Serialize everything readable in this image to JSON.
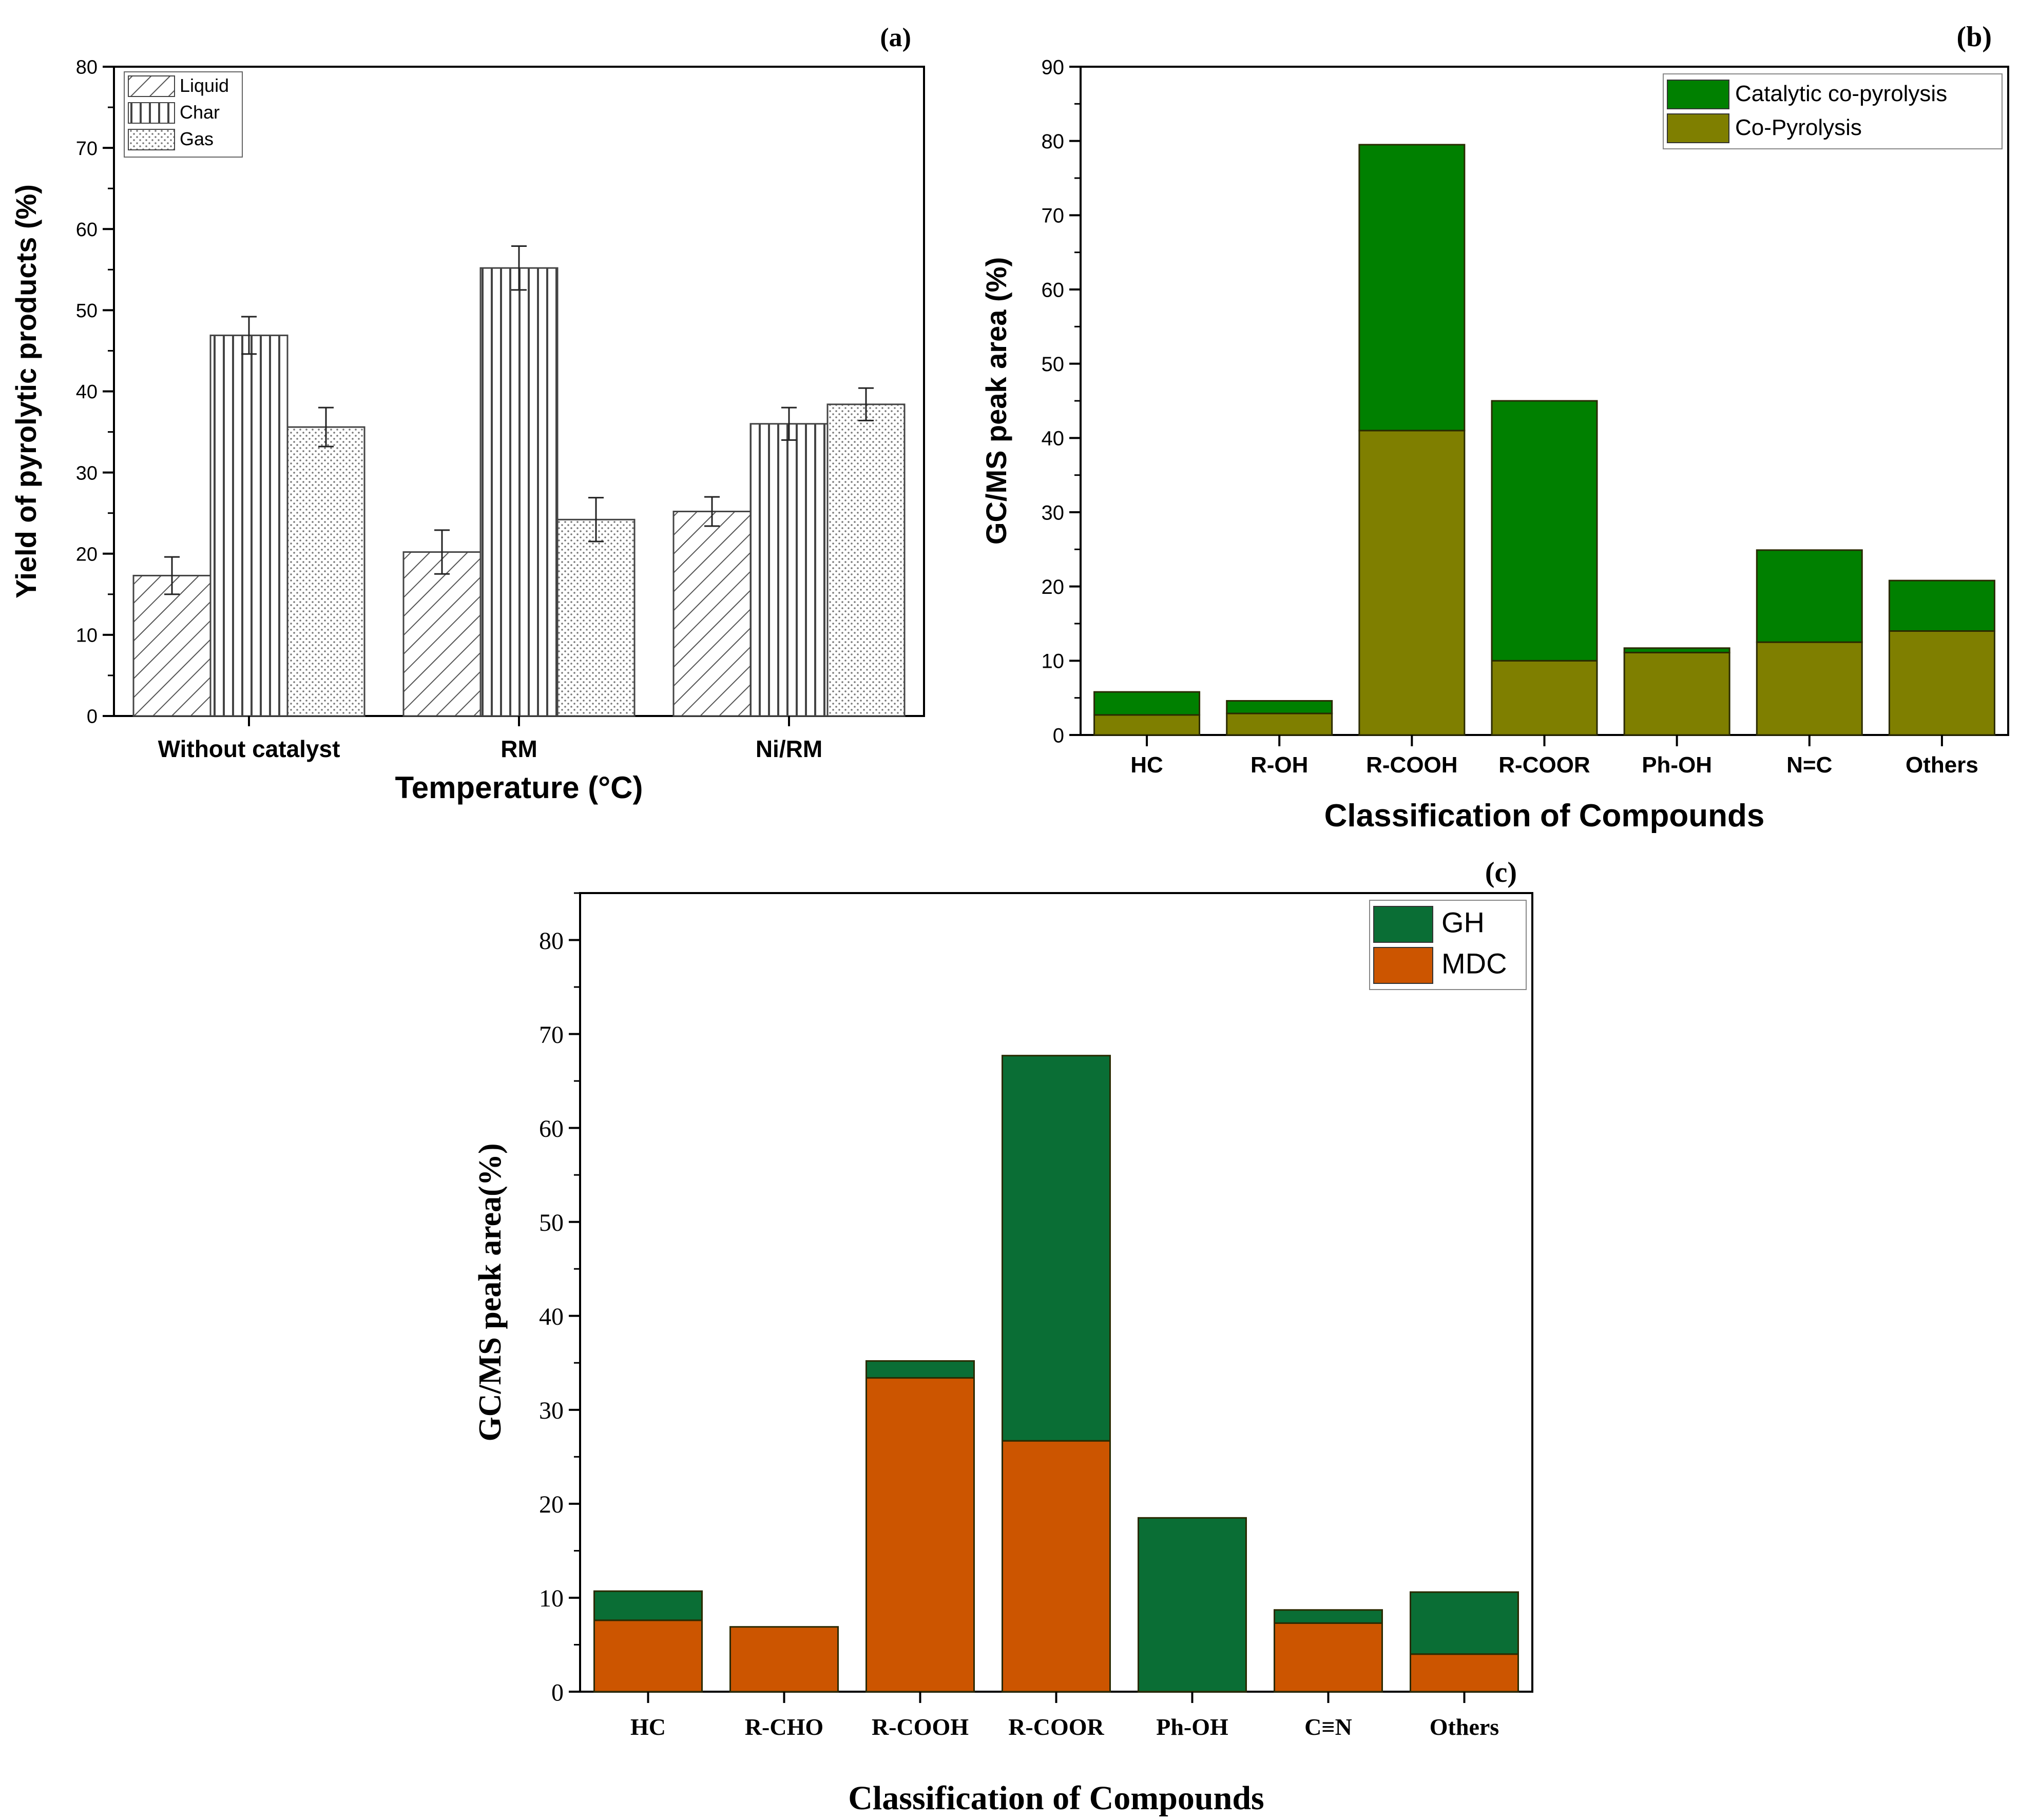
{
  "chart_data": [
    {
      "panel_label": "(a)",
      "type": "bar",
      "title": "",
      "xlabel": "Temperature (°C)",
      "ylabel": "Yield of pyrolytic products (%)",
      "ylim": [
        0,
        80
      ],
      "yticks": [
        "0",
        "10",
        "20",
        "30",
        "40",
        "50",
        "60",
        "70",
        "80"
      ],
      "categories": [
        "Without catalyst",
        "RM",
        "Ni/RM"
      ],
      "series": [
        {
          "name": "Liquid",
          "pattern": "diagonal-hatch",
          "values": [
            17.3,
            20.2,
            25.2
          ],
          "errors": [
            2.3,
            2.7,
            1.8
          ]
        },
        {
          "name": "Char",
          "pattern": "vertical-lines",
          "values": [
            46.9,
            55.2,
            36.0
          ],
          "errors": [
            2.3,
            2.7,
            2.0
          ]
        },
        {
          "name": "Gas",
          "pattern": "dots",
          "values": [
            35.6,
            24.2,
            38.4
          ],
          "errors": [
            2.4,
            2.7,
            2.0
          ]
        }
      ],
      "legend_position": "top-left"
    },
    {
      "panel_label": "(b)",
      "type": "bar",
      "stacked": true,
      "title": "",
      "xlabel": "Classification of Compounds",
      "ylabel": "GC/MS peak area (%)",
      "ylim": [
        0,
        90
      ],
      "yticks": [
        "0",
        "10",
        "20",
        "30",
        "40",
        "50",
        "60",
        "70",
        "80",
        "90"
      ],
      "categories": [
        "HC",
        "R-OH",
        "R-COOH",
        "R-COOR",
        "Ph-OH",
        "N=C",
        "Others"
      ],
      "series": [
        {
          "name": "Co-Pyrolysis",
          "color": "#7f7f00",
          "values": [
            2.7,
            2.9,
            41.0,
            10.0,
            11.1,
            12.5,
            14.0
          ]
        },
        {
          "name": "Catalytic co-pyrolysis",
          "color": "#008000",
          "values": [
            3.1,
            1.7,
            38.5,
            35.0,
            0.6,
            12.4,
            6.8
          ]
        }
      ],
      "legend_entries": [
        "Catalytic co-pyrolysis",
        "Co-Pyrolysis"
      ],
      "legend_position": "top-right"
    },
    {
      "panel_label": "(c)",
      "type": "bar",
      "stacked": true,
      "title": "",
      "xlabel": "Classification of Compounds",
      "ylabel": "GC/MS peak area(%)",
      "ylim": [
        0,
        85
      ],
      "yticks": [
        "0",
        "10",
        "20",
        "30",
        "40",
        "50",
        "60",
        "70",
        "80"
      ],
      "categories": [
        "HC",
        "R-CHO",
        "R-COOH",
        "R-COOR",
        "Ph-OH",
        "C≡N",
        "Others"
      ],
      "series": [
        {
          "name": "MDC",
          "color": "#cc5500",
          "values": [
            7.6,
            6.9,
            33.4,
            26.7,
            0,
            7.3,
            4.0
          ]
        },
        {
          "name": "GH",
          "color": "#0a6e35",
          "values": [
            3.1,
            0,
            1.8,
            41.0,
            18.5,
            1.4,
            6.6
          ]
        }
      ],
      "legend_entries": [
        "GH",
        "MDC"
      ],
      "legend_position": "top-right"
    }
  ]
}
